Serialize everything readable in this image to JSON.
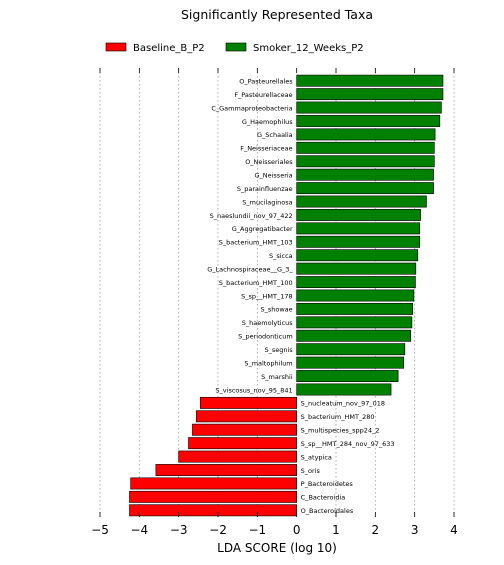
{
  "chart_data": {
    "type": "bar",
    "orientation": "horizontal",
    "title": "Significantly Represented Taxa",
    "xlabel": "LDA SCORE (log 10)",
    "ylabel": "",
    "xlim": [
      -5,
      4
    ],
    "xticks": [
      -5,
      -4,
      -3,
      -2,
      -1,
      0,
      1,
      2,
      3,
      4
    ],
    "xtick_labels": [
      "−5",
      "−4",
      "−3",
      "−2",
      "−1",
      "0",
      "1",
      "2",
      "3",
      "4"
    ],
    "grid": "vertical dotted",
    "legend_position": "top",
    "series": [
      {
        "name": "Baseline_B_P2",
        "color": "#ff0000"
      },
      {
        "name": "Smoker_12_Weeks_P2",
        "color": "#008000"
      }
    ],
    "bars": [
      {
        "label": "O_Pasteurellales",
        "value": 3.72,
        "group": "Smoker_12_Weeks_P2"
      },
      {
        "label": "F_Pasteurellaceae",
        "value": 3.72,
        "group": "Smoker_12_Weeks_P2"
      },
      {
        "label": "C_Gammaproteobacteria",
        "value": 3.68,
        "group": "Smoker_12_Weeks_P2"
      },
      {
        "label": "G_Haemophilus",
        "value": 3.64,
        "group": "Smoker_12_Weeks_P2"
      },
      {
        "label": "G_Schaalia",
        "value": 3.52,
        "group": "Smoker_12_Weeks_P2"
      },
      {
        "label": "F_Neisseriaceae",
        "value": 3.5,
        "group": "Smoker_12_Weeks_P2"
      },
      {
        "label": "O_Neisseriales",
        "value": 3.5,
        "group": "Smoker_12_Weeks_P2"
      },
      {
        "label": "G_Neisseria",
        "value": 3.48,
        "group": "Smoker_12_Weeks_P2"
      },
      {
        "label": "S_parainfluenzae",
        "value": 3.48,
        "group": "Smoker_12_Weeks_P2"
      },
      {
        "label": "S_mucilaginosa",
        "value": 3.3,
        "group": "Smoker_12_Weeks_P2"
      },
      {
        "label": "S_naeslundii_nov_97_422",
        "value": 3.15,
        "group": "Smoker_12_Weeks_P2"
      },
      {
        "label": "G_Aggregatibacter",
        "value": 3.13,
        "group": "Smoker_12_Weeks_P2"
      },
      {
        "label": "S_bacterium_HMT_103",
        "value": 3.13,
        "group": "Smoker_12_Weeks_P2"
      },
      {
        "label": "S_sicca",
        "value": 3.08,
        "group": "Smoker_12_Weeks_P2"
      },
      {
        "label": "G_Lachnospiraceae__G_3_",
        "value": 3.03,
        "group": "Smoker_12_Weeks_P2"
      },
      {
        "label": "S_bacterium_HMT_100",
        "value": 3.02,
        "group": "Smoker_12_Weeks_P2"
      },
      {
        "label": "S_sp__HMT_178",
        "value": 2.98,
        "group": "Smoker_12_Weeks_P2"
      },
      {
        "label": "S_showae",
        "value": 2.95,
        "group": "Smoker_12_Weeks_P2"
      },
      {
        "label": "S_haemolyticus",
        "value": 2.93,
        "group": "Smoker_12_Weeks_P2"
      },
      {
        "label": "S_periodonticum",
        "value": 2.9,
        "group": "Smoker_12_Weeks_P2"
      },
      {
        "label": "S_segnis",
        "value": 2.75,
        "group": "Smoker_12_Weeks_P2"
      },
      {
        "label": "S_maltophilum",
        "value": 2.72,
        "group": "Smoker_12_Weeks_P2"
      },
      {
        "label": "S_marshii",
        "value": 2.58,
        "group": "Smoker_12_Weeks_P2"
      },
      {
        "label": "S_viscosus_nov_95_841",
        "value": 2.4,
        "group": "Smoker_12_Weeks_P2"
      },
      {
        "label": "S_nucleatum_nov_97_018",
        "value": -2.45,
        "group": "Baseline_B_P2"
      },
      {
        "label": "S_bacterium_HMT_280",
        "value": -2.55,
        "group": "Baseline_B_P2"
      },
      {
        "label": "S_multispecies_spp24_2",
        "value": -2.65,
        "group": "Baseline_B_P2"
      },
      {
        "label": "S_sp__HMT_284_nov_97_633",
        "value": -2.75,
        "group": "Baseline_B_P2"
      },
      {
        "label": "S_atypica",
        "value": -3.0,
        "group": "Baseline_B_P2"
      },
      {
        "label": "S_oris",
        "value": -3.58,
        "group": "Baseline_B_P2"
      },
      {
        "label": "P_Bacteroidetes",
        "value": -4.22,
        "group": "Baseline_B_P2"
      },
      {
        "label": "C_Bacteroidia",
        "value": -4.25,
        "group": "Baseline_B_P2"
      },
      {
        "label": "O_Bacteroidales",
        "value": -4.25,
        "group": "Baseline_B_P2"
      }
    ]
  }
}
